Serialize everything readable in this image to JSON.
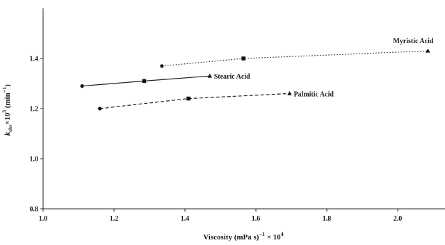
{
  "chart_data": {
    "type": "line",
    "xlabel": "Viscosity (mPa s)",
    "xlabel_sup": "−1",
    "xlabel_tail": " × 10",
    "xlabel_tail_sup": "4",
    "ylabel_main": "k",
    "ylabel_sub": "obs",
    "ylabel_mid": "×10",
    "ylabel_sup": "3",
    "ylabel_unit": " (min",
    "ylabel_unit_sup": "−1",
    "ylabel_close": ")",
    "xlim": [
      1.0,
      2.2
    ],
    "ylim": [
      0.8,
      1.6
    ],
    "x_ticks": [
      1.0,
      1.2,
      1.4,
      1.6,
      1.8,
      2.0
    ],
    "y_ticks": [
      0.8,
      1.0,
      1.2,
      1.4
    ],
    "x_tick_labels": [
      "1.0",
      "1.2",
      "1.4",
      "1.6",
      "1.8",
      "2.0"
    ],
    "y_tick_labels": [
      "0.8",
      "1.0",
      "1.2",
      "1.4"
    ],
    "grid": false,
    "series": [
      {
        "name": "Myristic Acid",
        "line_style": "dotted",
        "points": [
          {
            "x": 1.335,
            "y": 1.37,
            "marker": "circle"
          },
          {
            "x": 1.565,
            "y": 1.4,
            "marker": "square"
          },
          {
            "x": 2.085,
            "y": 1.43,
            "marker": "triangle"
          }
        ]
      },
      {
        "name": "Stearic Acid",
        "line_style": "solid",
        "points": [
          {
            "x": 1.11,
            "y": 1.29,
            "marker": "circle"
          },
          {
            "x": 1.285,
            "y": 1.31,
            "marker": "square"
          },
          {
            "x": 1.47,
            "y": 1.33,
            "marker": "triangle"
          }
        ]
      },
      {
        "name": "Palmitic Acid",
        "line_style": "dashed",
        "points": [
          {
            "x": 1.16,
            "y": 1.2,
            "marker": "circle"
          },
          {
            "x": 1.41,
            "y": 1.24,
            "marker": "square"
          },
          {
            "x": 1.695,
            "y": 1.26,
            "marker": "triangle"
          }
        ]
      }
    ]
  }
}
